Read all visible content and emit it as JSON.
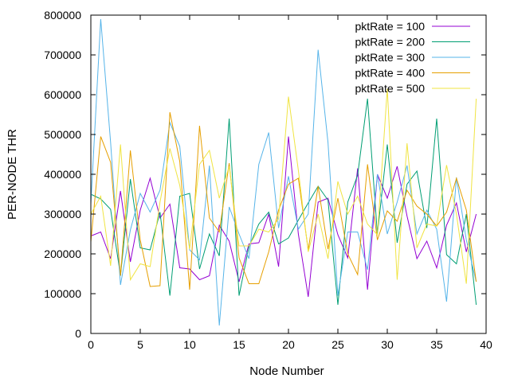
{
  "chart_data": {
    "type": "line",
    "title": "",
    "xlabel": "Node Number",
    "ylabel": "PER-NODE THR",
    "xlim": [
      0,
      40
    ],
    "ylim": [
      0,
      800000
    ],
    "xticks": [
      0,
      5,
      10,
      15,
      20,
      25,
      30,
      35,
      40
    ],
    "yticks": [
      0,
      100000,
      200000,
      300000,
      400000,
      500000,
      600000,
      700000,
      800000
    ],
    "xtick_labels": [
      "0",
      "5",
      "10",
      "15",
      "20",
      "25",
      "30",
      "35",
      "40"
    ],
    "ytick_labels": [
      "0",
      "100000",
      "200000",
      "300000",
      "400000",
      "500000",
      "600000",
      "700000",
      "800000"
    ],
    "grid": false,
    "legend_position": "top-right",
    "x": [
      0,
      1,
      2,
      3,
      4,
      5,
      6,
      7,
      8,
      9,
      10,
      11,
      12,
      13,
      14,
      15,
      16,
      17,
      18,
      19,
      20,
      21,
      22,
      23,
      24,
      25,
      26,
      27,
      28,
      29,
      30,
      31,
      32,
      33,
      34,
      35,
      36,
      37,
      38,
      39
    ],
    "series": [
      {
        "name": "pktRate = 100",
        "color": "#9400d3",
        "values": [
          245000,
          255000,
          188000,
          358000,
          180000,
          310000,
          390000,
          290000,
          325000,
          165000,
          162000,
          135000,
          145000,
          272000,
          232000,
          130000,
          225000,
          228000,
          300000,
          168000,
          495000,
          250000,
          92000,
          330000,
          340000,
          248000,
          190000,
          415000,
          110000,
          400000,
          340000,
          420000,
          295000,
          188000,
          232000,
          165000,
          272000,
          328000,
          205000,
          300000
        ]
      },
      {
        "name": "pktRate = 200",
        "color": "#009e73",
        "values": [
          350000,
          338000,
          312000,
          145000,
          388000,
          215000,
          210000,
          305000,
          95000,
          345000,
          352000,
          162000,
          250000,
          195000,
          540000,
          95000,
          218000,
          275000,
          305000,
          225000,
          240000,
          285000,
          328000,
          370000,
          335000,
          72000,
          330000,
          398000,
          590000,
          250000,
          475000,
          228000,
          375000,
          408000,
          265000,
          540000,
          198000,
          175000,
          300000,
          72000
        ]
      },
      {
        "name": "pktRate = 300",
        "color": "#56b4e9",
        "values": [
          325000,
          790000,
          480000,
          122000,
          260000,
          352000,
          305000,
          360000,
          530000,
          470000,
          210000,
          185000,
          422000,
          20000,
          318000,
          250000,
          188000,
          425000,
          505000,
          265000,
          395000,
          262000,
          300000,
          713000,
          480000,
          95000,
          255000,
          255000,
          160000,
          400000,
          250000,
          330000,
          422000,
          250000,
          310000,
          262000,
          80000,
          392000,
          235000,
          130000
        ]
      },
      {
        "name": "pktRate = 400",
        "color": "#e69f00",
        "values": [
          230000,
          495000,
          430000,
          145000,
          460000,
          235000,
          118000,
          120000,
          556000,
          432000,
          110000,
          522000,
          290000,
          255000,
          428000,
          190000,
          125000,
          125000,
          205000,
          310000,
          375000,
          390000,
          210000,
          370000,
          212000,
          340000,
          200000,
          148000,
          425000,
          235000,
          308000,
          282000,
          360000,
          320000,
          300000,
          270000,
          305000,
          390000,
          310000,
          130000
        ]
      },
      {
        "name": "pktRate = 500",
        "color": "#f0e442",
        "values": [
          300000,
          345000,
          170000,
          475000,
          135000,
          175000,
          168000,
          330000,
          465000,
          372000,
          212000,
          425000,
          460000,
          340000,
          420000,
          220000,
          220000,
          262000,
          255000,
          288000,
          595000,
          410000,
          205000,
          300000,
          188000,
          382000,
          300000,
          345000,
          275000,
          248000,
          615000,
          135000,
          478000,
          215000,
          275000,
          270000,
          423000,
          300000,
          125000,
          590000
        ]
      }
    ]
  }
}
